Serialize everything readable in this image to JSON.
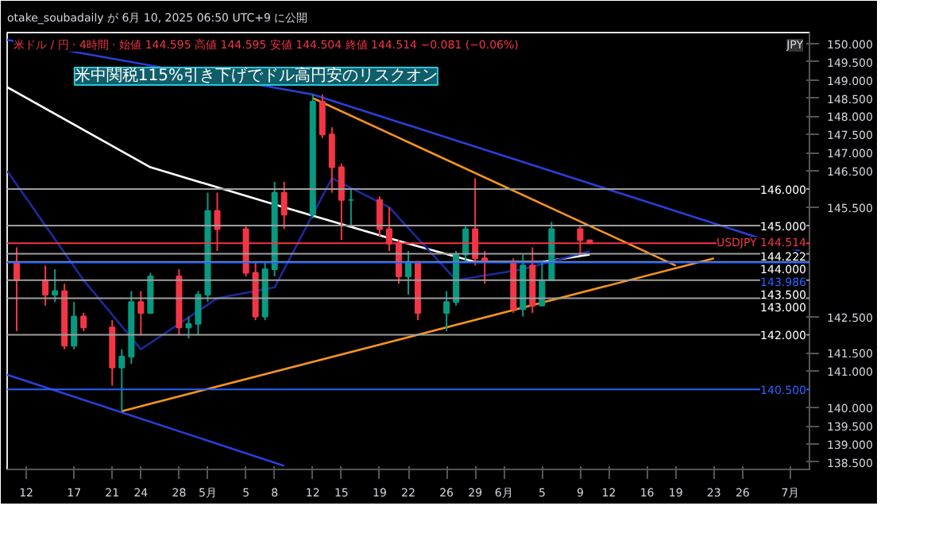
{
  "chart_data": {
    "type": "candlestick",
    "title": "otake_soubadaily が 6月 10, 2025 06:50 UTC+9 に公開",
    "subtitle": "米ドル / 円 · 4時間 · 始値 144.595 高値 144.595 安値 144.504 終値 144.514 −0.081 (−0.06%)",
    "ylabel": "JPY",
    "x": [
      "2025-04-11",
      "2025-04-14",
      "2025-04-15",
      "2025-04-16",
      "2025-04-17",
      "2025-04-18",
      "2025-04-21",
      "2025-04-22",
      "2025-04-23",
      "2025-04-24",
      "2025-04-25",
      "2025-04-28",
      "2025-04-29",
      "2025-04-30",
      "2025-05-01",
      "2025-05-02",
      "2025-05-05",
      "2025-05-06",
      "2025-05-07",
      "2025-05-08",
      "2025-05-09",
      "2025-05-12",
      "2025-05-13",
      "2025-05-14",
      "2025-05-15",
      "2025-05-16",
      "2025-05-19",
      "2025-05-20",
      "2025-05-21",
      "2025-05-22",
      "2025-05-23",
      "2025-05-26",
      "2025-05-27",
      "2025-05-28",
      "2025-05-29",
      "2025-05-30",
      "2025-06-02",
      "2025-06-03",
      "2025-06-04",
      "2025-06-05",
      "2025-06-06",
      "2025-06-09",
      "2025-06-10"
    ],
    "ohlc": [
      [
        144.0,
        144.4,
        142.1,
        143.5
      ],
      [
        143.5,
        143.9,
        142.8,
        143.1
      ],
      [
        143.1,
        143.8,
        142.9,
        143.2
      ],
      [
        143.2,
        143.4,
        141.6,
        141.7
      ],
      [
        141.7,
        142.9,
        141.6,
        142.5
      ],
      [
        142.5,
        142.6,
        142.1,
        142.2
      ],
      [
        142.2,
        142.4,
        140.6,
        141.1
      ],
      [
        141.1,
        141.6,
        139.9,
        141.4
      ],
      [
        141.4,
        143.2,
        141.2,
        142.9
      ],
      [
        142.9,
        143.2,
        142.0,
        142.6
      ],
      [
        142.6,
        143.7,
        142.6,
        143.6
      ],
      [
        143.6,
        143.8,
        142.0,
        142.2
      ],
      [
        142.2,
        142.5,
        141.9,
        142.3
      ],
      [
        142.3,
        143.2,
        142.0,
        143.1
      ],
      [
        143.1,
        145.9,
        142.9,
        145.4
      ],
      [
        145.4,
        145.9,
        144.3,
        144.9
      ],
      [
        144.9,
        145.0,
        143.6,
        143.7
      ],
      [
        143.7,
        144.0,
        142.4,
        142.5
      ],
      [
        142.5,
        144.0,
        142.4,
        143.8
      ],
      [
        143.8,
        146.2,
        143.6,
        145.9
      ],
      [
        145.9,
        146.2,
        144.9,
        145.3
      ],
      [
        145.3,
        148.6,
        145.2,
        148.4
      ],
      [
        148.4,
        148.6,
        147.4,
        147.5
      ],
      [
        147.5,
        147.7,
        145.9,
        146.6
      ],
      [
        146.6,
        146.7,
        144.6,
        145.7
      ],
      [
        145.7,
        146.0,
        145.0,
        145.7
      ],
      [
        145.7,
        145.8,
        144.7,
        144.9
      ],
      [
        144.9,
        145.5,
        144.3,
        144.5
      ],
      [
        144.5,
        144.6,
        143.4,
        143.6
      ],
      [
        143.6,
        144.3,
        143.1,
        144.0
      ],
      [
        144.0,
        144.0,
        142.4,
        142.6
      ],
      [
        142.6,
        143.2,
        142.1,
        142.9
      ],
      [
        142.9,
        144.3,
        142.8,
        144.2
      ],
      [
        144.2,
        145.0,
        144.0,
        144.9
      ],
      [
        144.9,
        146.3,
        143.9,
        144.1
      ],
      [
        144.1,
        144.3,
        143.4,
        144.0
      ],
      [
        144.0,
        144.1,
        142.6,
        142.7
      ],
      [
        142.7,
        144.2,
        142.5,
        143.9
      ],
      [
        143.9,
        144.4,
        142.6,
        142.8
      ],
      [
        142.8,
        144.0,
        142.8,
        143.5
      ],
      [
        143.5,
        145.1,
        143.5,
        144.9
      ],
      [
        144.9,
        145.0,
        144.2,
        144.6
      ],
      [
        144.595,
        144.595,
        144.504,
        144.514
      ]
    ],
    "series": [
      {
        "type": "line",
        "color": "#2a3fd6",
        "x": [
          "2025-04-10",
          "2025-05-12",
          "2025-07-02"
        ],
        "values": [
          150.1,
          148.6,
          144.3
        ]
      },
      {
        "type": "line",
        "color": "#2a3fd6",
        "x": [
          "2025-04-10",
          "2025-05-09"
        ],
        "values": [
          140.9,
          138.4
        ]
      },
      {
        "type": "line",
        "color": "#f7941d",
        "x": [
          "2025-05-12",
          "2025-06-19"
        ],
        "values": [
          148.5,
          143.9
        ]
      },
      {
        "type": "line",
        "color": "#f7941d",
        "x": [
          "2025-04-22",
          "2025-06-23"
        ],
        "values": [
          139.9,
          144.1
        ]
      },
      {
        "type": "line",
        "color": "#ffffff",
        "x": [
          "2025-04-10",
          "2025-04-25",
          "2025-05-09",
          "2025-05-22",
          "2025-05-29",
          "2025-06-05",
          "2025-06-10"
        ],
        "values": [
          148.8,
          146.6,
          145.5,
          144.5,
          144.0,
          144.0,
          144.2
        ]
      },
      {
        "type": "line",
        "color": "#1c2a9c",
        "x": [
          "2025-04-10",
          "2025-04-18",
          "2025-04-24",
          "2025-05-02",
          "2025-05-08",
          "2025-05-14",
          "2025-05-20",
          "2025-05-27",
          "2025-06-03",
          "2025-06-10"
        ],
        "values": [
          146.5,
          143.5,
          141.6,
          143.0,
          143.3,
          146.3,
          145.5,
          143.5,
          143.8,
          144.3
        ]
      }
    ],
    "ref_lines": [
      {
        "axis": "y",
        "value": 146.0,
        "label": "146.000",
        "color": "#9e9e9e"
      },
      {
        "axis": "y",
        "value": 145.0,
        "label": "145.000",
        "color": "#9e9e9e"
      },
      {
        "axis": "y",
        "value": 144.514,
        "label": "USDJPY 144.514",
        "color": "#f23645"
      },
      {
        "axis": "y",
        "value": 144.222,
        "label": "144.222",
        "color": "#9e9e9e"
      },
      {
        "axis": "y",
        "value": 144.0,
        "label": "144.000",
        "color": "#9e9e9e"
      },
      {
        "axis": "y",
        "value": 143.986,
        "label": "143.986",
        "color": "#2962ff"
      },
      {
        "axis": "y",
        "value": 143.5,
        "label": "143.500",
        "color": "#9e9e9e"
      },
      {
        "axis": "y",
        "value": 143.0,
        "label": "143.000",
        "color": "#9e9e9e"
      },
      {
        "axis": "y",
        "value": 142.0,
        "label": "142.000",
        "color": "#9e9e9e"
      },
      {
        "axis": "y",
        "value": 140.5,
        "label": "140.500",
        "color": "#2962ff"
      }
    ],
    "annotations": [
      {
        "text": "米中関税115%引き下げでドル高円安のリスクオン",
        "x": "2025-05-12",
        "y": 148.6
      }
    ],
    "xlim": [
      "2025-04-10",
      "2025-07-03"
    ],
    "xticks": [
      {
        "value": "2025-04-12",
        "label": "12"
      },
      {
        "value": "2025-04-17",
        "label": "17"
      },
      {
        "value": "2025-04-21",
        "label": "21"
      },
      {
        "value": "2025-04-24",
        "label": "24"
      },
      {
        "value": "2025-04-28",
        "label": "28"
      },
      {
        "value": "2025-05-01",
        "label": "5月"
      },
      {
        "value": "2025-05-05",
        "label": "5"
      },
      {
        "value": "2025-05-08",
        "label": "8"
      },
      {
        "value": "2025-05-12",
        "label": "12"
      },
      {
        "value": "2025-05-15",
        "label": "15"
      },
      {
        "value": "2025-05-19",
        "label": "19"
      },
      {
        "value": "2025-05-22",
        "label": "22"
      },
      {
        "value": "2025-05-26",
        "label": "26"
      },
      {
        "value": "2025-05-29",
        "label": "29"
      },
      {
        "value": "2025-06-01",
        "label": "6月"
      },
      {
        "value": "2025-06-05",
        "label": "5"
      },
      {
        "value": "2025-06-09",
        "label": "9"
      },
      {
        "value": "2025-06-12",
        "label": "12"
      },
      {
        "value": "2025-06-16",
        "label": "16"
      },
      {
        "value": "2025-06-19",
        "label": "19"
      },
      {
        "value": "2025-06-23",
        "label": "23"
      },
      {
        "value": "2025-06-26",
        "label": "26"
      },
      {
        "value": "2025-07-01",
        "label": "7月"
      }
    ],
    "ylim": [
      138.3,
      150.3
    ],
    "yticks": [
      {
        "value": 138.5,
        "label": "138.500"
      },
      {
        "value": 139.0,
        "label": "139.000"
      },
      {
        "value": 139.5,
        "label": "139.500"
      },
      {
        "value": 140.0,
        "label": "140.000"
      },
      {
        "value": 141.0,
        "label": "141.000"
      },
      {
        "value": 141.5,
        "label": "141.500"
      },
      {
        "value": 142.5,
        "label": "142.500"
      },
      {
        "value": 145.5,
        "label": "145.500"
      },
      {
        "value": 146.5,
        "label": "146.500"
      },
      {
        "value": 147.0,
        "label": "147.000"
      },
      {
        "value": 147.5,
        "label": "147.500"
      },
      {
        "value": 148.0,
        "label": "148.000"
      },
      {
        "value": 148.5,
        "label": "148.500"
      },
      {
        "value": 149.0,
        "label": "149.000"
      },
      {
        "value": 149.5,
        "label": "149.500"
      },
      {
        "value": 150.0,
        "label": "150.000"
      }
    ],
    "grid": false
  }
}
